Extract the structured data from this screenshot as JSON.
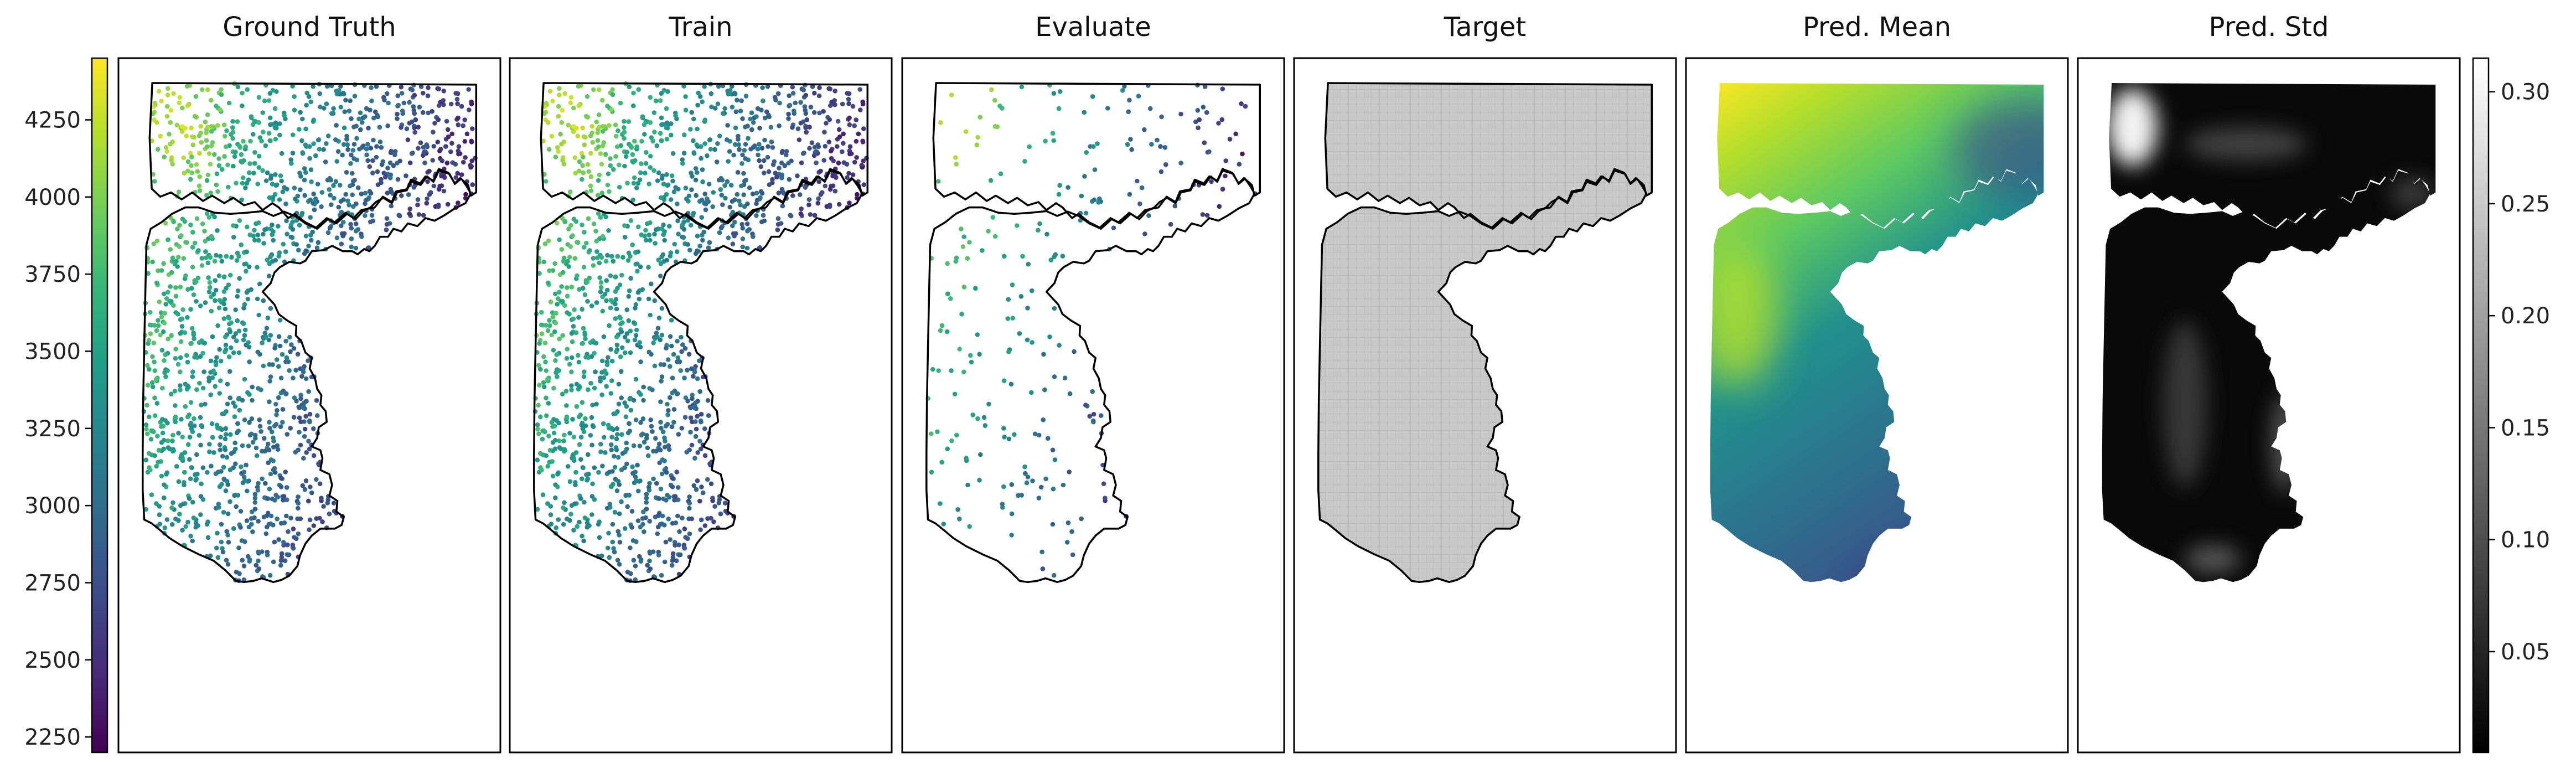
{
  "chart_data": {
    "type": "scatter",
    "layout": "six-panel spatial map",
    "panels": [
      {
        "title": "Ground Truth",
        "kind": "scatter-points",
        "density": "dense"
      },
      {
        "title": "Train",
        "kind": "scatter-points",
        "density": "dense"
      },
      {
        "title": "Evaluate",
        "kind": "scatter-points",
        "density": "sparse"
      },
      {
        "title": "Target",
        "kind": "grid-mask"
      },
      {
        "title": "Pred. Mean",
        "kind": "continuous-field",
        "colormap": "viridis"
      },
      {
        "title": "Pred. Std",
        "kind": "continuous-field",
        "colormap": "gray"
      }
    ],
    "left_colorbar": {
      "colormap": "viridis",
      "range": [
        2200,
        4450
      ],
      "ticks": [
        2250,
        2500,
        2750,
        3000,
        3250,
        3500,
        3750,
        4000,
        4250
      ],
      "tick_labels": [
        "2250",
        "2500",
        "2750",
        "3000",
        "3250",
        "3500",
        "3750",
        "4000",
        "4250"
      ]
    },
    "right_colorbar": {
      "colormap": "gray",
      "range": [
        0.005,
        0.315
      ],
      "ticks": [
        0.05,
        0.1,
        0.15,
        0.2,
        0.25,
        0.3
      ],
      "tick_labels": [
        "0.05",
        "0.10",
        "0.15",
        "0.20",
        "0.25",
        "0.30"
      ]
    },
    "grid": false,
    "xlabel": "",
    "ylabel": ""
  },
  "colors": {
    "viridis": [
      "#440154",
      "#482878",
      "#3e4989",
      "#31688e",
      "#26828e",
      "#1f9e89",
      "#35b779",
      "#6ece58",
      "#b5de2b",
      "#fde725"
    ],
    "target_fill": "#c8c8c8",
    "outline": "#000000"
  }
}
